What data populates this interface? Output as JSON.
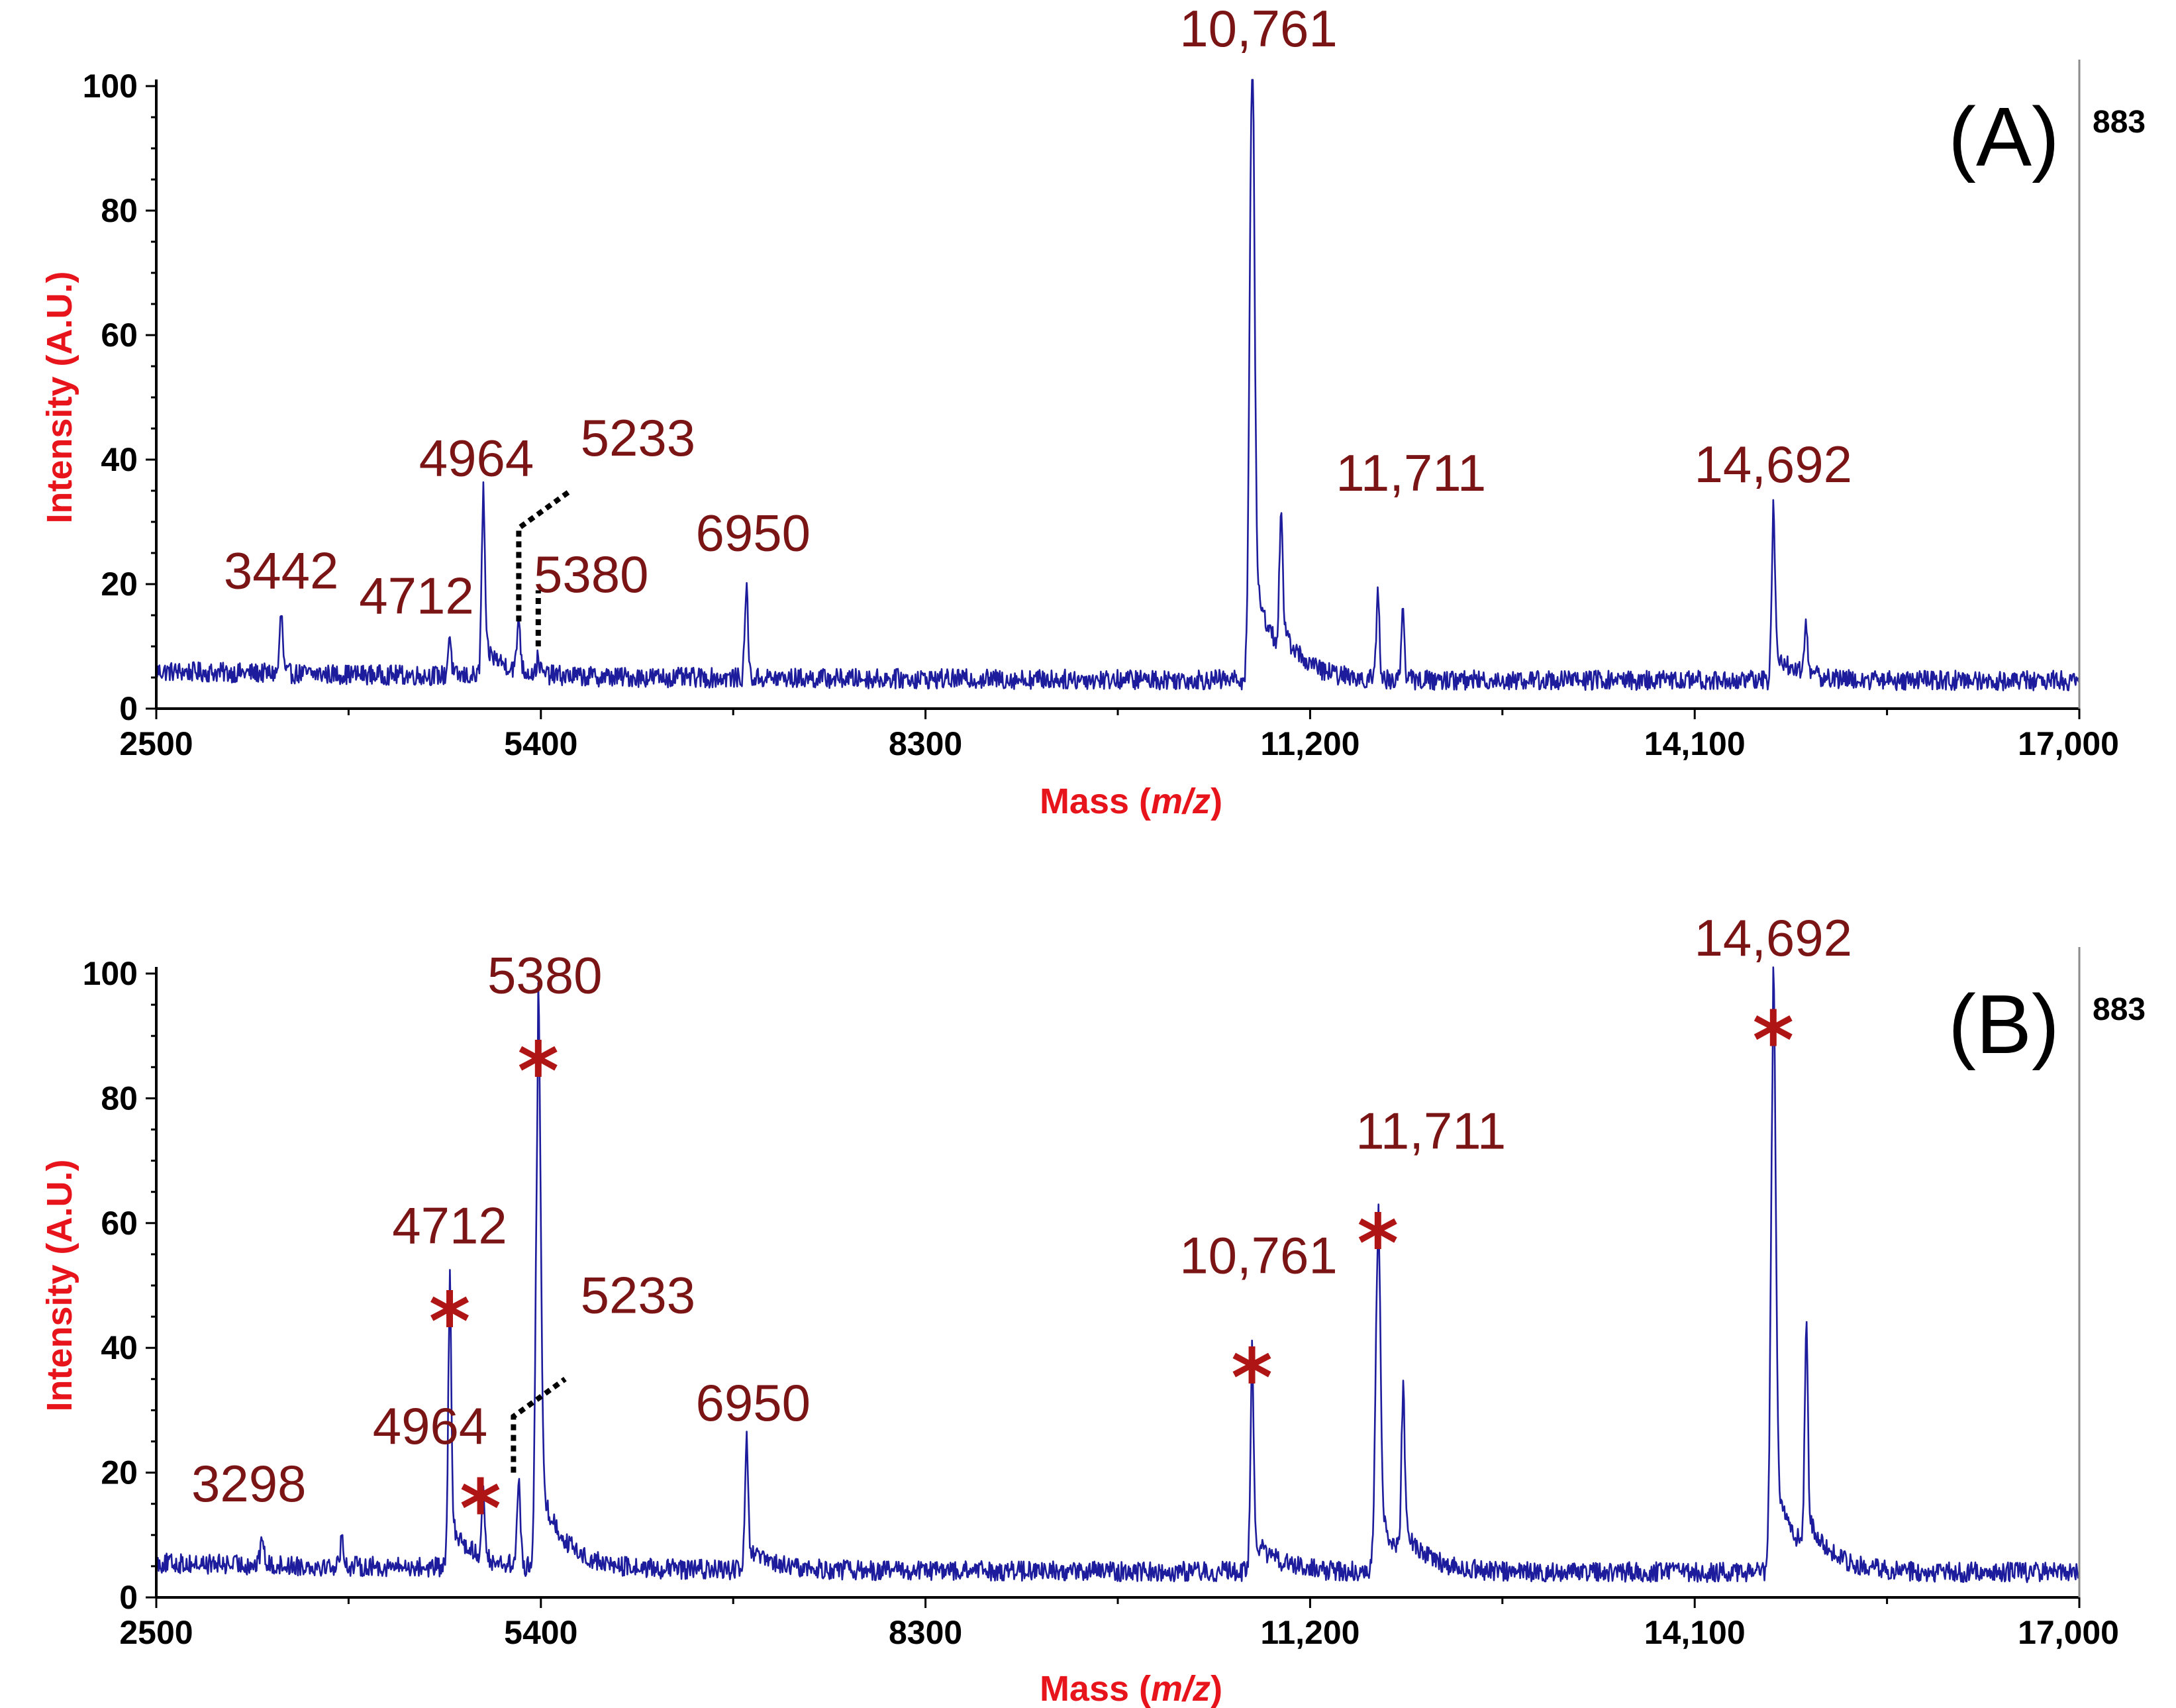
{
  "chart_data": [
    {
      "type": "line",
      "panel_label": "(A)",
      "scale_label": "883",
      "ylabel": "Intensity (A.U.)",
      "xlabel_prefix": "Mass (",
      "xlabel_italic": "m/z",
      "xlabel_suffix": ")",
      "xlim": [
        2500,
        17000
      ],
      "ylim": [
        0,
        100
      ],
      "x_ticks": [
        "2500",
        "5400",
        "8300",
        "11,200",
        "14,100",
        "17,000"
      ],
      "x_tick_values": [
        2500,
        5400,
        8300,
        11200,
        14100,
        17000
      ],
      "y_ticks": [
        "0",
        "20",
        "40",
        "60",
        "80",
        "100"
      ],
      "y_tick_values": [
        0,
        20,
        40,
        60,
        80,
        100
      ],
      "baseline": 4.5,
      "series": [
        {
          "peaks": [
            {
              "x": 3442,
              "y": 14
            },
            {
              "x": 4712,
              "y": 11
            },
            {
              "x": 4964,
              "y": 31
            },
            {
              "x": 5233,
              "y": 13
            },
            {
              "x": 5380,
              "y": 7
            },
            {
              "x": 6950,
              "y": 19
            },
            {
              "x": 10761,
              "y": 100
            },
            {
              "x": 10980,
              "y": 25
            },
            {
              "x": 11711,
              "y": 18
            },
            {
              "x": 11900,
              "y": 16
            },
            {
              "x": 14692,
              "y": 30
            },
            {
              "x": 14940,
              "y": 13
            }
          ]
        }
      ],
      "annotations": [
        {
          "text": "3442",
          "x": 3442,
          "y": 14,
          "starred": false
        },
        {
          "text": "4712",
          "x": 4712,
          "y": 11,
          "starred": false
        },
        {
          "text": "4964",
          "x": 4964,
          "y": 31,
          "starred": false
        },
        {
          "text": "5233",
          "x": 5233,
          "y": 13,
          "starred": false,
          "leader": true
        },
        {
          "text": "5380",
          "x": 5380,
          "y": 7,
          "starred": false,
          "leader": true
        },
        {
          "text": "6950",
          "x": 6950,
          "y": 19,
          "starred": false
        },
        {
          "text": "10,761",
          "x": 10761,
          "y": 100,
          "starred": false
        },
        {
          "text": "11,711",
          "x": 11711,
          "y": 18,
          "starred": false
        },
        {
          "text": "14,692",
          "x": 14692,
          "y": 30,
          "starred": false
        }
      ]
    },
    {
      "type": "line",
      "panel_label": "(B)",
      "scale_label": "883",
      "ylabel": "Intensity (A.U.)",
      "xlabel_prefix": "Mass (",
      "xlabel_italic": "m/z",
      "xlabel_suffix": ")",
      "xlim": [
        2500,
        17000
      ],
      "ylim": [
        0,
        100
      ],
      "x_ticks": [
        "2500",
        "5400",
        "8300",
        "11,200",
        "14,100",
        "17,000"
      ],
      "x_tick_values": [
        2500,
        5400,
        8300,
        11200,
        14100,
        17000
      ],
      "y_ticks": [
        "0",
        "20",
        "40",
        "60",
        "80",
        "100"
      ],
      "y_tick_values": [
        0,
        20,
        40,
        60,
        80,
        100
      ],
      "baseline": 4,
      "series": [
        {
          "peaks": [
            {
              "x": 3298,
              "y": 9
            },
            {
              "x": 3900,
              "y": 9
            },
            {
              "x": 4712,
              "y": 44
            },
            {
              "x": 4964,
              "y": 14
            },
            {
              "x": 5233,
              "y": 18
            },
            {
              "x": 5380,
              "y": 82
            },
            {
              "x": 6950,
              "y": 22
            },
            {
              "x": 10761,
              "y": 35
            },
            {
              "x": 11711,
              "y": 56
            },
            {
              "x": 11900,
              "y": 28
            },
            {
              "x": 14692,
              "y": 88
            },
            {
              "x": 14940,
              "y": 37
            }
          ]
        }
      ],
      "annotations": [
        {
          "text": "3298",
          "x": 3298,
          "y": 9,
          "starred": false
        },
        {
          "text": "4712",
          "x": 4712,
          "y": 44,
          "starred": true
        },
        {
          "text": "4964",
          "x": 4964,
          "y": 14,
          "starred": true
        },
        {
          "text": "5233",
          "x": 5233,
          "y": 18,
          "starred": false,
          "leader": true
        },
        {
          "text": "5380",
          "x": 5380,
          "y": 82,
          "starred": true
        },
        {
          "text": "6950",
          "x": 6950,
          "y": 22,
          "starred": false
        },
        {
          "text": "10,761",
          "x": 10761,
          "y": 35,
          "starred": true
        },
        {
          "text": "11,711",
          "x": 11711,
          "y": 56,
          "starred": true
        },
        {
          "text": "14,692",
          "x": 14692,
          "y": 88,
          "starred": true
        }
      ]
    }
  ]
}
